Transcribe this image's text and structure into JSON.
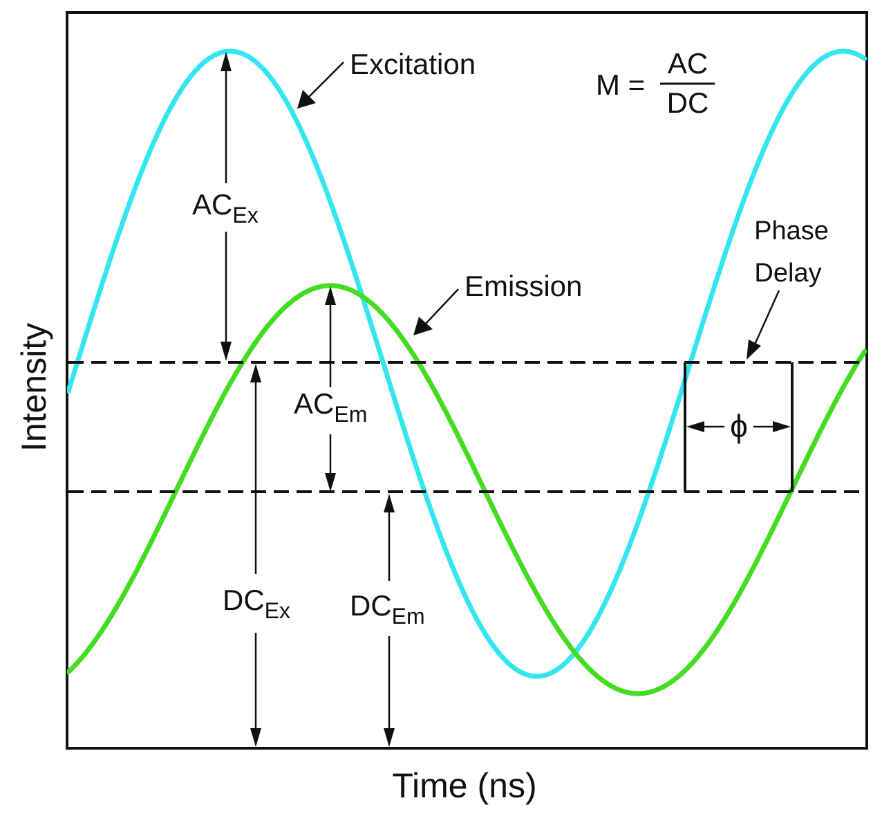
{
  "axes": {
    "xlabel": "Time (ns)",
    "ylabel": "Intensity"
  },
  "waves": {
    "excitation": {
      "label": "Excitation",
      "color": "#33e6f0"
    },
    "emission": {
      "label": "Emission",
      "color": "#44dd22"
    }
  },
  "formula": {
    "lhs": "M =",
    "numerator": "AC",
    "denominator": "DC"
  },
  "annotations": {
    "ac_ex": {
      "main": "AC",
      "sub": "Ex"
    },
    "ac_em": {
      "main": "AC",
      "sub": "Em"
    },
    "dc_ex": {
      "main": "DC",
      "sub": "Ex"
    },
    "dc_em": {
      "main": "DC",
      "sub": "Em"
    },
    "phase_delay_line1": "Phase",
    "phase_delay_line2": "Delay",
    "phi": "ϕ"
  }
}
